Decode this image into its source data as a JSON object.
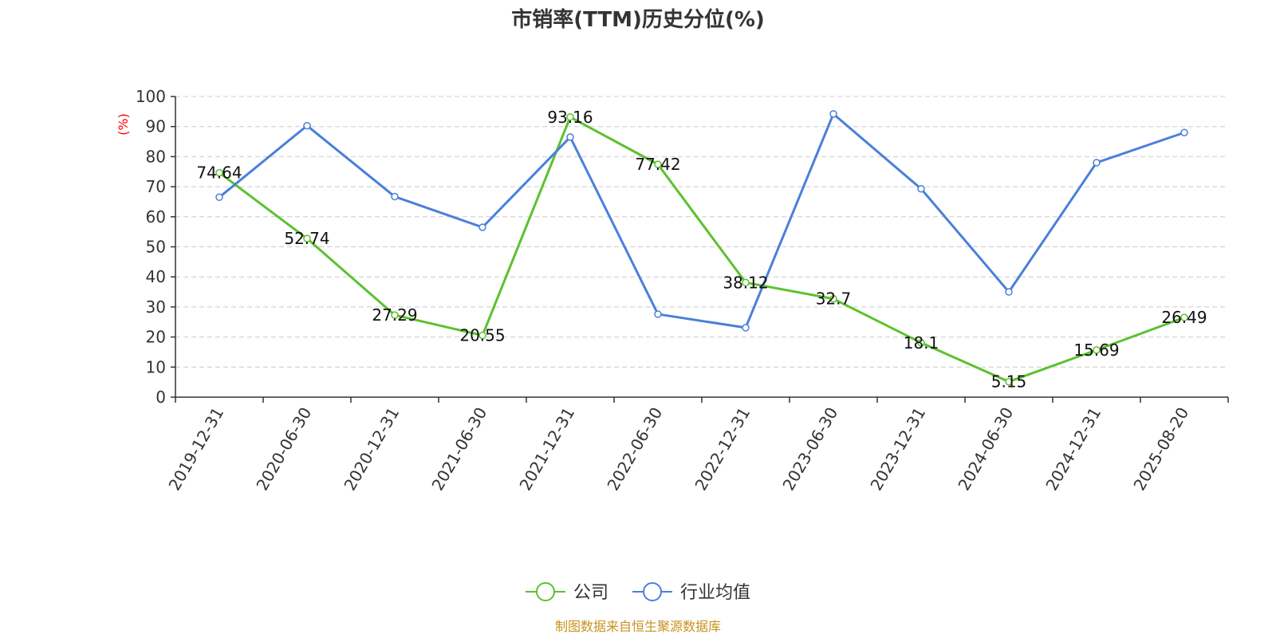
{
  "chart_data": {
    "type": "line",
    "title": "市销率(TTM)历史分位(%)",
    "ylabel": "(%)",
    "ylim": [
      0,
      100
    ],
    "yticks": [
      0,
      10,
      20,
      30,
      40,
      50,
      60,
      70,
      80,
      90,
      100
    ],
    "categories": [
      "2019-12-31",
      "2020-06-30",
      "2020-12-31",
      "2021-06-30",
      "2021-12-31",
      "2022-06-30",
      "2022-12-31",
      "2023-06-30",
      "2023-12-31",
      "2024-06-30",
      "2024-12-31",
      "2025-08-20"
    ],
    "grid": true,
    "legend_position": "bottom",
    "series": [
      {
        "name": "公司",
        "color": "#5cc12f",
        "values": [
          74.64,
          52.74,
          27.29,
          20.55,
          93.16,
          77.42,
          38.12,
          32.7,
          18.1,
          5.15,
          15.69,
          26.49
        ],
        "labels": [
          "74.64",
          "52.74",
          "27.29",
          "20.55",
          "93.16",
          "77.42",
          "38.12",
          "32.7",
          "18.1",
          "5.15",
          "15.69",
          "26.49"
        ]
      },
      {
        "name": "行业均值",
        "color": "#4a7fdb",
        "values": [
          66.5,
          90.3,
          66.7,
          56.5,
          86.5,
          27.6,
          23.1,
          94.2,
          69.3,
          35.0,
          78.0,
          88.0
        ]
      }
    ]
  },
  "source_text": "制图数据来自恒生聚源数据库"
}
